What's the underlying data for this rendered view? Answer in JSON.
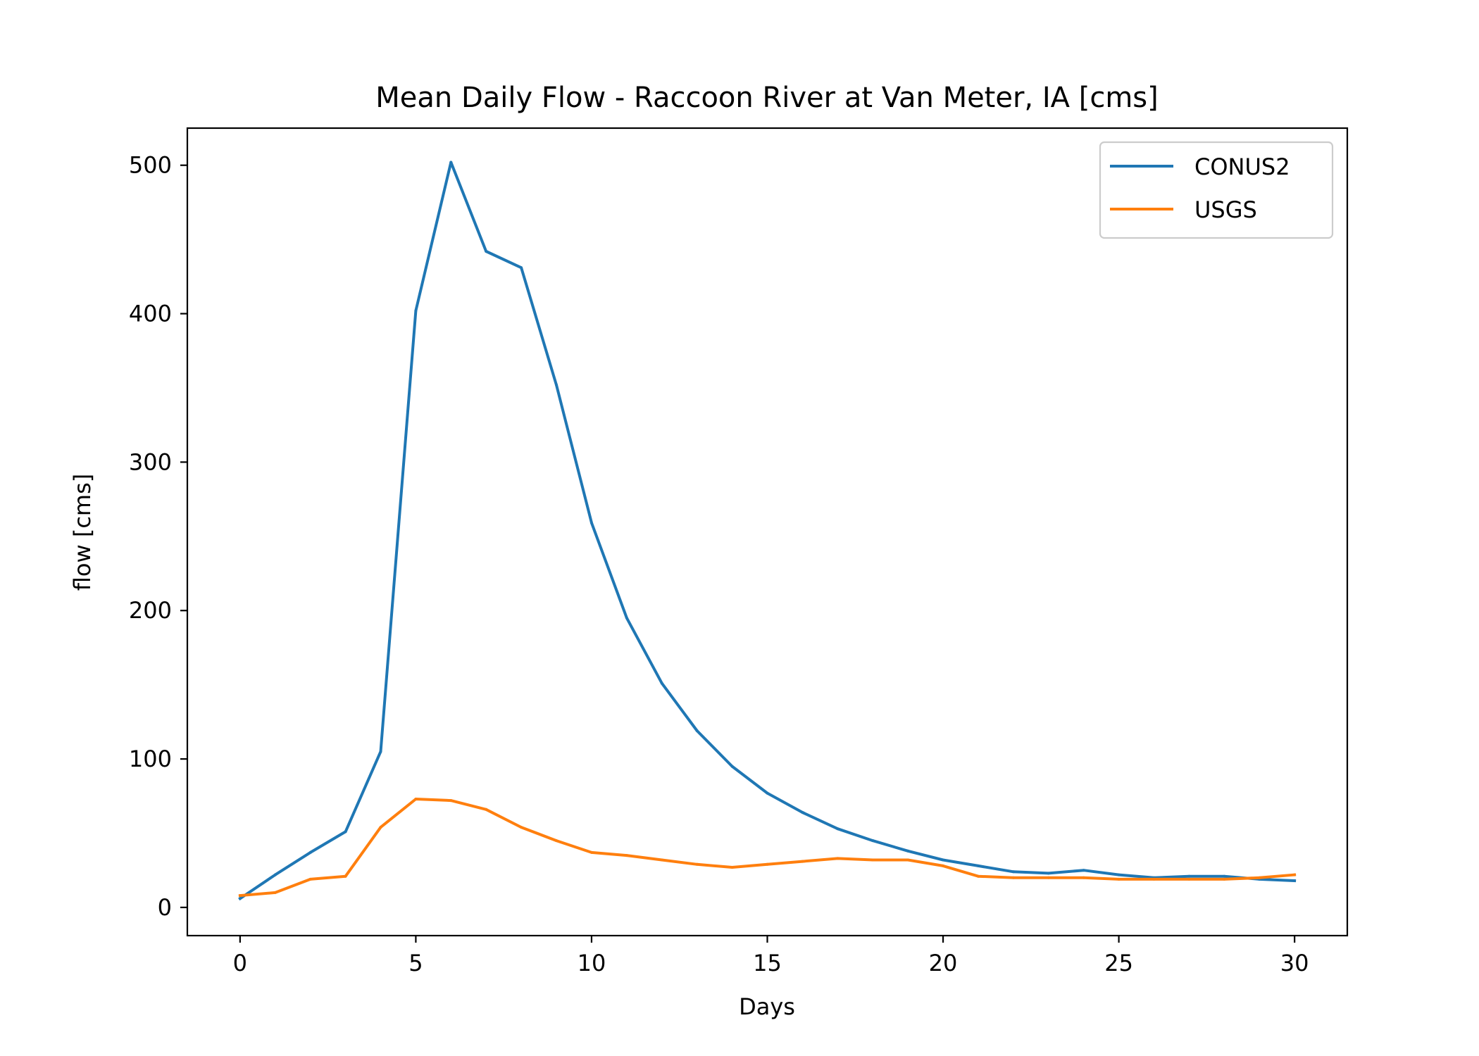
{
  "chart_data": {
    "type": "line",
    "title": "Mean Daily Flow - Raccoon River at Van Meter, IA [cms]",
    "xlabel": "Days",
    "ylabel": "flow [cms]",
    "xlim": [
      -1.5,
      31.5
    ],
    "ylim": [
      -19,
      525
    ],
    "xticks": [
      0,
      5,
      10,
      15,
      20,
      25,
      30
    ],
    "yticks": [
      0,
      100,
      200,
      300,
      400,
      500
    ],
    "grid": false,
    "legend_position": "upper right",
    "x": [
      0,
      1,
      2,
      3,
      4,
      5,
      6,
      7,
      8,
      9,
      10,
      11,
      12,
      13,
      14,
      15,
      16,
      17,
      18,
      19,
      20,
      21,
      22,
      23,
      24,
      25,
      26,
      27,
      28,
      29,
      30
    ],
    "series": [
      {
        "name": "CONUS2",
        "color": "#1f77b4",
        "values": [
          6,
          22,
          37,
          51,
          105,
          402,
          502,
          442,
          431,
          352,
          259,
          195,
          151,
          119,
          95,
          77,
          64,
          53,
          45,
          38,
          32,
          28,
          24,
          23,
          25,
          22,
          20,
          21,
          21,
          19,
          18
        ]
      },
      {
        "name": "USGS",
        "color": "#ff7f0e",
        "values": [
          8,
          10,
          19,
          21,
          54,
          73,
          72,
          66,
          54,
          45,
          37,
          35,
          32,
          29,
          27,
          29,
          31,
          33,
          32,
          32,
          28,
          21,
          20,
          20,
          20,
          19,
          19,
          19,
          19,
          20,
          22
        ]
      }
    ]
  }
}
